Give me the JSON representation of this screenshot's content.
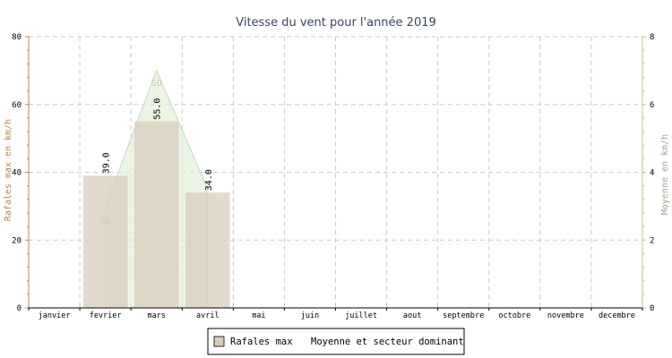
{
  "chart_data": {
    "type": "bar",
    "title": "Vitesse du vent pour l'année 2019",
    "categories": [
      "janvier",
      "fevrier",
      "mars",
      "avril",
      "mai",
      "juin",
      "juillet",
      "aout",
      "septembre",
      "octobre",
      "novembre",
      "decembre"
    ],
    "ylabel_left": "Rafales max en km/h",
    "ylabel_right": "Moyenne en km/h",
    "ylim_left": [
      0,
      80
    ],
    "ylim_right": [
      0,
      8
    ],
    "yticks_left": [
      "0",
      "20",
      "40",
      "60",
      "80"
    ],
    "yticks_right": [
      "0",
      "2",
      "4",
      "6",
      "8"
    ],
    "grid": true,
    "series": [
      {
        "name": "Rafales max",
        "type": "bar",
        "axis": "left",
        "color": "#d9cdbc",
        "values": [
          null,
          39.0,
          55.0,
          34.0,
          null,
          null,
          null,
          null,
          null,
          null,
          null,
          null
        ],
        "labels": [
          null,
          "39.0",
          "55.0",
          "34.0",
          null,
          null,
          null,
          null,
          null,
          null,
          null,
          null
        ]
      },
      {
        "name": "Moyenne et secteur dominant",
        "type": "area",
        "axis": "right",
        "color": "#e4efdc",
        "values": [
          null,
          3.0,
          7.0,
          3.5,
          null,
          null,
          null,
          null,
          null,
          null,
          null,
          null
        ],
        "sector_labels": [
          null,
          "SO",
          "SO",
          null,
          null,
          null,
          null,
          null,
          null,
          null,
          null,
          null
        ]
      }
    ],
    "legend": {
      "position": "bottom-center",
      "items": [
        "Rafales max",
        "Moyenne et secteur dominant"
      ]
    }
  }
}
